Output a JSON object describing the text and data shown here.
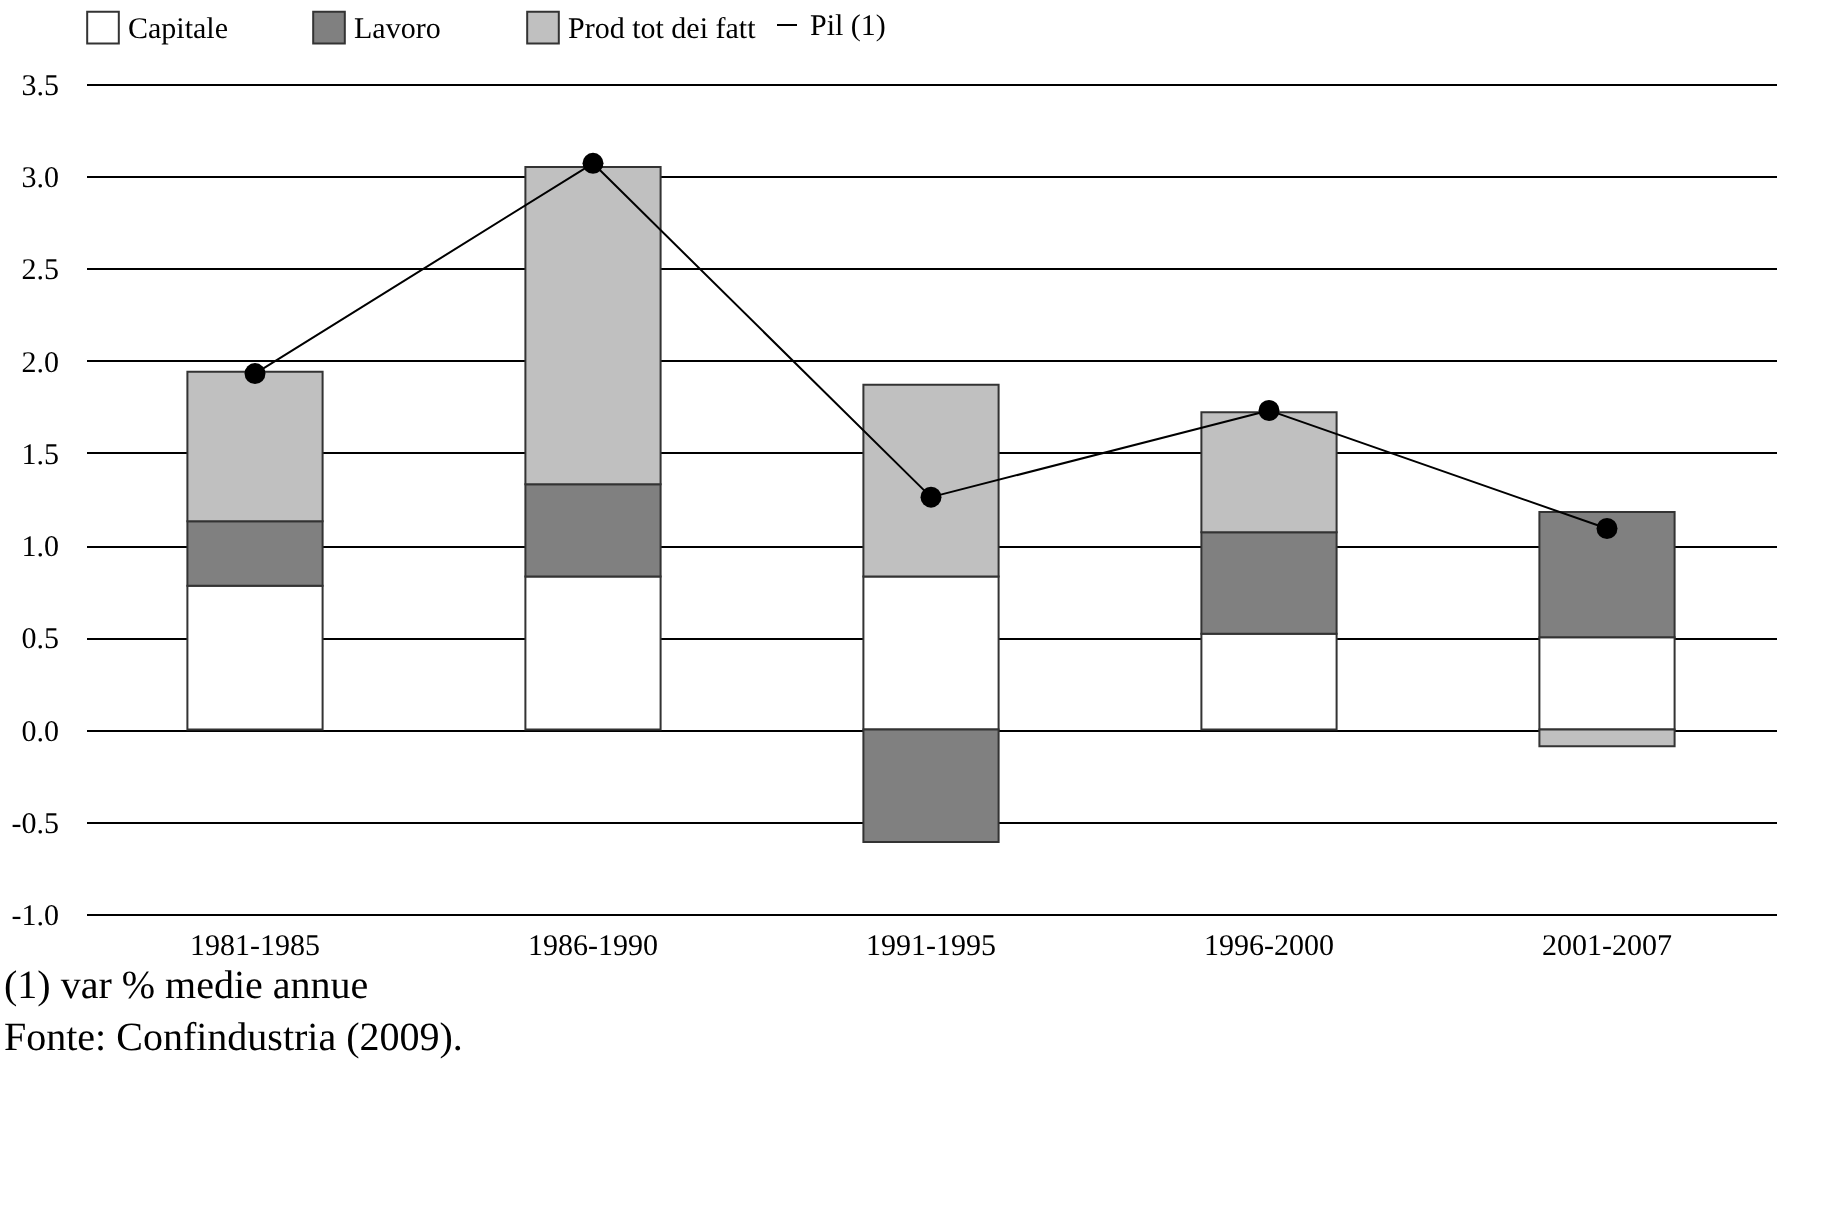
{
  "chart_data": {
    "type": "bar",
    "stacked": true,
    "categories": [
      "1981-1985",
      "1986-1990",
      "1991-1995",
      "1996-2000",
      "2001-2007"
    ],
    "series": [
      {
        "name": "Capitale",
        "color": "#ffffff",
        "values": [
          0.78,
          0.83,
          0.83,
          0.52,
          0.5
        ]
      },
      {
        "name": "Lavoro",
        "color": "#808080",
        "values": [
          0.35,
          0.5,
          -0.61,
          0.55,
          0.68
        ]
      },
      {
        "name": "Prod tot dei fatt",
        "color": "#c0c0c0",
        "values": [
          0.81,
          1.72,
          1.04,
          0.65,
          -0.09
        ]
      },
      {
        "name": "Pil (1)",
        "color": "#000000",
        "type": "line",
        "marker": "circle",
        "values": [
          1.93,
          3.07,
          1.26,
          1.73,
          1.09
        ]
      }
    ],
    "ylim": [
      -1,
      3.5
    ],
    "yticks": [
      {
        "value": -1,
        "label": "-1.0"
      },
      {
        "value": -0.5,
        "label": "-0.5"
      },
      {
        "value": 0,
        "label": "0.0"
      },
      {
        "value": 0.5,
        "label": "0.5"
      },
      {
        "value": 1,
        "label": "1.0"
      },
      {
        "value": 1.5,
        "label": "1.5"
      },
      {
        "value": 2,
        "label": "2.0"
      },
      {
        "value": 2.5,
        "label": "2.5"
      },
      {
        "value": 3,
        "label": "3.0"
      },
      {
        "value": 3.5,
        "label": "3.5"
      }
    ],
    "grid": "y",
    "legend": "top",
    "annotations": [
      "(1) var % medie annue",
      "Fonte: Confindustria (2009)."
    ]
  }
}
